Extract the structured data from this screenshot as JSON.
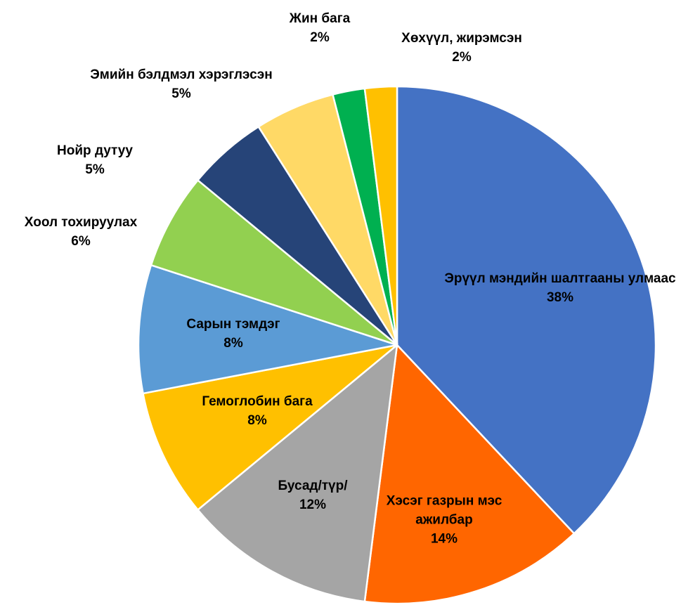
{
  "chart_data": {
    "type": "pie",
    "categories": [
      "Эрүүл мэндийн шалтгааны улмаас",
      "Хэсэг газрын мэс ажилбар",
      "Бусад/түр/",
      "Гемоглобин бага",
      "Сарын тэмдэг",
      "Хоол тохируулах",
      "Нойр дутуу",
      "Эмийн бэлдмэл хэрэглэсэн",
      "Жин бага",
      "Хөхүүл, жирэмсэн"
    ],
    "values": [
      38,
      14,
      12,
      8,
      8,
      6,
      5,
      5,
      2,
      2
    ],
    "value_labels": [
      "38%",
      "14%",
      "12%",
      "8%",
      "8%",
      "6%",
      "5%",
      "5%",
      "2%",
      "2%"
    ],
    "colors": [
      "#4472c4",
      "#ff6600",
      "#a5a5a5",
      "#ffc000",
      "#5b9bd5",
      "#92d050",
      "#264478",
      "#ffd966",
      "#00b050",
      "#ffc000"
    ]
  }
}
